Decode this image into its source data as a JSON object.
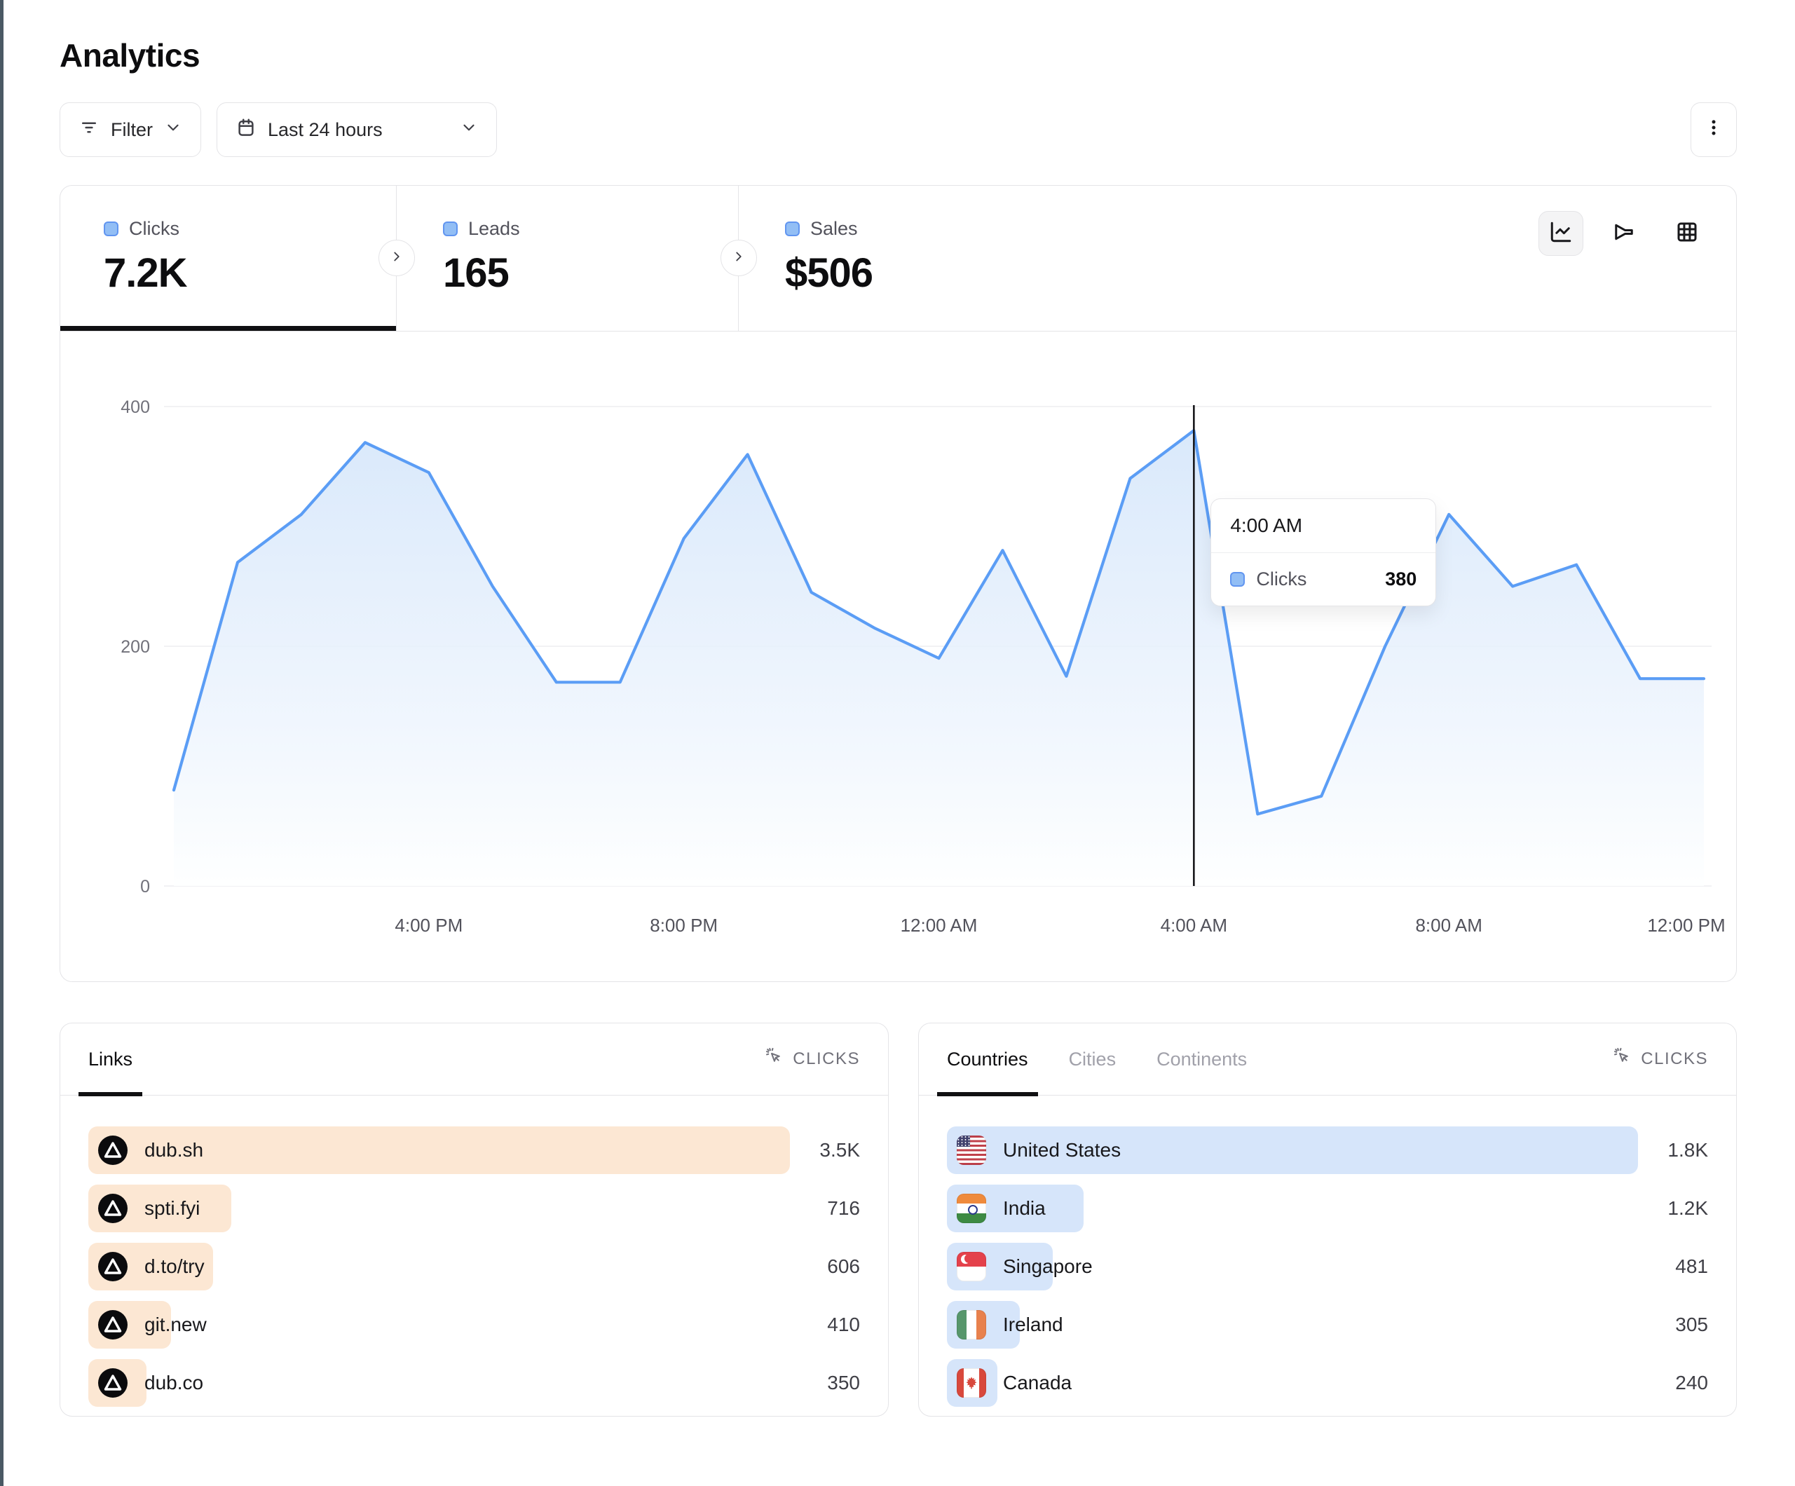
{
  "page": {
    "title": "Analytics"
  },
  "toolbar": {
    "filter_label": "Filter",
    "date_range_label": "Last 24 hours",
    "icons": [
      "filter-icon",
      "calendar-icon",
      "chevron-down-icon",
      "kebab-menu-icon"
    ]
  },
  "stats": [
    {
      "label": "Clicks",
      "value": "7.2K",
      "active": true
    },
    {
      "label": "Leads",
      "value": "165",
      "active": false
    },
    {
      "label": "Sales",
      "value": "$506",
      "active": false
    }
  ],
  "chart_toolbar": {
    "views": [
      "line-chart",
      "funnel-chart",
      "table-view"
    ],
    "active": "line-chart"
  },
  "chart_data": {
    "type": "area",
    "series_name": "Clicks",
    "x": [
      "12:00 PM",
      "1:00 PM",
      "2:00 PM",
      "3:00 PM",
      "4:00 PM",
      "5:00 PM",
      "6:00 PM",
      "7:00 PM",
      "8:00 PM",
      "9:00 PM",
      "10:00 PM",
      "11:00 PM",
      "12:00 AM",
      "1:00 AM",
      "2:00 AM",
      "3:00 AM",
      "4:00 AM",
      "5:00 AM",
      "6:00 AM",
      "7:00 AM",
      "8:00 AM",
      "9:00 AM",
      "10:00 AM",
      "11:00 AM",
      "12:00 PM"
    ],
    "values": [
      80,
      270,
      310,
      370,
      345,
      250,
      170,
      170,
      290,
      360,
      245,
      215,
      190,
      280,
      175,
      340,
      380,
      60,
      75,
      200,
      310,
      250,
      268,
      173,
      173
    ],
    "xticks": [
      "4:00 PM",
      "8:00 PM",
      "12:00 AM",
      "4:00 AM",
      "8:00 AM",
      "12:00 PM"
    ],
    "xtick_hours": [
      4,
      8,
      12,
      16,
      20,
      24
    ],
    "yticks": [
      0,
      200,
      400
    ],
    "ylim": [
      0,
      420
    ],
    "grid": "horizontal",
    "legend_position": "none",
    "line_color": "#5B9DF5",
    "area_top_color": "#D3E5FA",
    "hover": {
      "index": 16,
      "label": "4:00 AM",
      "series": "Clicks",
      "value": 380
    }
  },
  "links_panel": {
    "tabs": [
      {
        "label": "Links",
        "active": true
      }
    ],
    "metric_label": "CLICKS",
    "bar_color": "#FCE7D3",
    "rows": [
      {
        "name": "dub.sh",
        "value": "3.5K",
        "bar_pct": 100
      },
      {
        "name": "spti.fyi",
        "value": "716",
        "bar_pct": 20.4
      },
      {
        "name": "d.to/try",
        "value": "606",
        "bar_pct": 17.8
      },
      {
        "name": "git.new",
        "value": "410",
        "bar_pct": 11.8
      },
      {
        "name": "dub.co",
        "value": "350",
        "bar_pct": 8.3
      }
    ]
  },
  "countries_panel": {
    "tabs": [
      {
        "label": "Countries",
        "active": true
      },
      {
        "label": "Cities",
        "active": false
      },
      {
        "label": "Continents",
        "active": false
      }
    ],
    "metric_label": "CLICKS",
    "bar_color": "#D6E5FA",
    "rows": [
      {
        "name": "United States",
        "flag": "us",
        "value": "1.8K",
        "bar_pct": 100
      },
      {
        "name": "India",
        "flag": "in",
        "value": "1.2K",
        "bar_pct": 19.8
      },
      {
        "name": "Singapore",
        "flag": "sg",
        "value": "481",
        "bar_pct": 15.3
      },
      {
        "name": "Ireland",
        "flag": "ie",
        "value": "305",
        "bar_pct": 10.5
      },
      {
        "name": "Canada",
        "flag": "ca",
        "value": "240",
        "bar_pct": 7.3
      }
    ]
  }
}
